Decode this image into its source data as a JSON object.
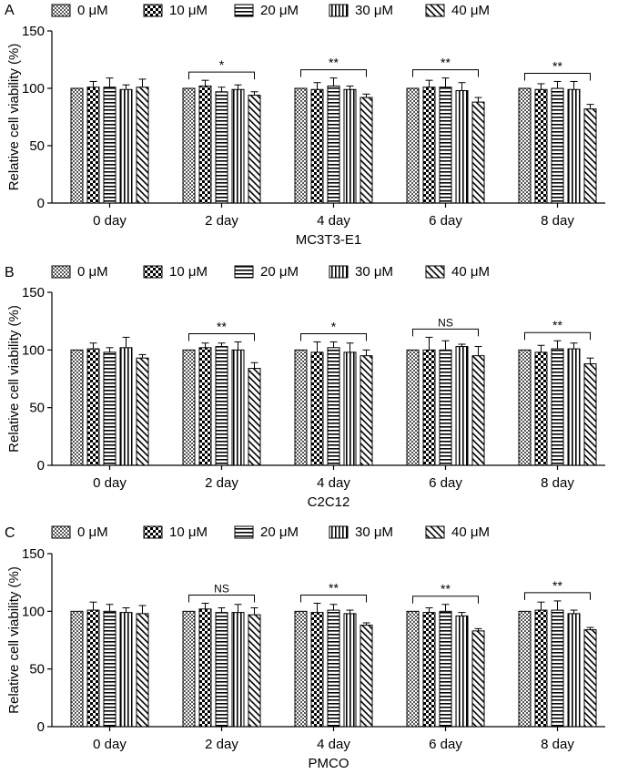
{
  "legend_labels": [
    "0 μM",
    "10 μM",
    "20 μM",
    "30 μM",
    "40 μM"
  ],
  "chart_data": [
    {
      "panel": "A",
      "type": "bar",
      "xlabel": "MC3T3-E1",
      "ylabel": "Relative cell viability (%)",
      "ylim": [
        0,
        150
      ],
      "yticks": [
        "0",
        "50",
        "100",
        "150"
      ],
      "categories": [
        "0 day",
        "2 day",
        "4 day",
        "6 day",
        "8 day"
      ],
      "series": [
        {
          "name": "0 μM",
          "values": [
            100,
            100,
            100,
            100,
            100
          ],
          "errors": [
            0,
            0,
            0,
            0,
            0
          ]
        },
        {
          "name": "10 μM",
          "values": [
            101,
            102,
            99,
            101,
            99
          ],
          "errors": [
            5,
            5,
            6,
            6,
            5
          ]
        },
        {
          "name": "20 μM",
          "values": [
            101,
            97,
            102,
            101,
            100
          ],
          "errors": [
            8,
            4,
            7,
            8,
            6
          ]
        },
        {
          "name": "30 μM",
          "values": [
            99,
            99,
            99,
            98,
            99
          ],
          "errors": [
            4,
            4,
            3,
            7,
            7
          ]
        },
        {
          "name": "40 μM",
          "values": [
            101,
            94,
            92,
            88,
            82
          ],
          "errors": [
            7,
            3,
            3,
            4,
            4
          ]
        }
      ],
      "significance": [
        "",
        "*",
        "**",
        "**",
        "**"
      ]
    },
    {
      "panel": "B",
      "type": "bar",
      "xlabel": "C2C12",
      "ylabel": "Relative cell viability (%)",
      "ylim": [
        0,
        150
      ],
      "yticks": [
        "0",
        "50",
        "100",
        "150"
      ],
      "categories": [
        "0 day",
        "2 day",
        "4 day",
        "6 day",
        "8 day"
      ],
      "series": [
        {
          "name": "0 μM",
          "values": [
            100,
            100,
            100,
            100,
            100
          ],
          "errors": [
            0,
            0,
            0,
            0,
            0
          ]
        },
        {
          "name": "10 μM",
          "values": [
            101,
            102,
            98,
            100,
            98
          ],
          "errors": [
            5,
            4,
            9,
            11,
            6
          ]
        },
        {
          "name": "20 μM",
          "values": [
            98,
            103,
            102,
            100,
            101
          ],
          "errors": [
            4,
            3,
            5,
            8,
            7
          ]
        },
        {
          "name": "30 μM",
          "values": [
            102,
            100,
            98,
            103,
            101
          ],
          "errors": [
            9,
            7,
            8,
            2,
            5
          ]
        },
        {
          "name": "40 μM",
          "values": [
            93,
            84,
            95,
            95,
            88
          ],
          "errors": [
            3,
            5,
            5,
            8,
            5
          ]
        }
      ],
      "significance": [
        "",
        "**",
        "*",
        "NS",
        "**"
      ]
    },
    {
      "panel": "C",
      "type": "bar",
      "xlabel": "PMCO",
      "ylabel": "Relative cell viability (%)",
      "ylim": [
        0,
        150
      ],
      "yticks": [
        "0",
        "50",
        "100",
        "150"
      ],
      "categories": [
        "0 day",
        "2 day",
        "4 day",
        "6 day",
        "8 day"
      ],
      "series": [
        {
          "name": "0 μM",
          "values": [
            100,
            100,
            100,
            100,
            100
          ],
          "errors": [
            0,
            0,
            0,
            0,
            0
          ]
        },
        {
          "name": "10 μM",
          "values": [
            101,
            102,
            99,
            99,
            101
          ],
          "errors": [
            7,
            5,
            8,
            4,
            7
          ]
        },
        {
          "name": "20 μM",
          "values": [
            100,
            99,
            101,
            100,
            101
          ],
          "errors": [
            6,
            4,
            5,
            6,
            8
          ]
        },
        {
          "name": "30 μM",
          "values": [
            99,
            99,
            98,
            96,
            98
          ],
          "errors": [
            4,
            7,
            3,
            3,
            3
          ]
        },
        {
          "name": "40 μM",
          "values": [
            98,
            97,
            88,
            83,
            84
          ],
          "errors": [
            7,
            6,
            2,
            2,
            2
          ]
        }
      ],
      "significance": [
        "",
        "NS",
        "**",
        "**",
        "**"
      ]
    }
  ]
}
